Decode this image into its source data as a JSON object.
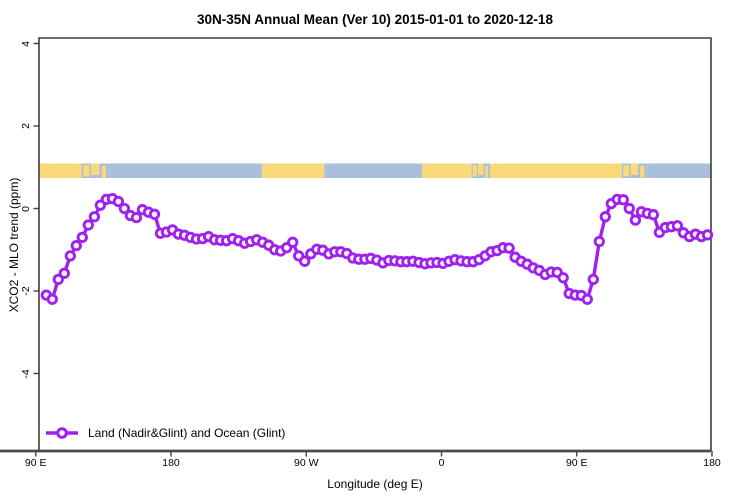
{
  "title": "30N-35N Annual Mean (Ver 10)   2015-01-01 to 2020-12-18",
  "chart_data": {
    "type": "line",
    "title": "30N-35N Annual Mean (Ver 10)   2015-01-01 to 2020-12-18",
    "xlabel": "Longitude (deg E)",
    "ylabel": "XCO2 - MLO trend (ppm)",
    "xlim": [
      90,
      540
    ],
    "ylim": [
      -5.9,
      4.15
    ],
    "grid": false,
    "legend_position": "bottom-left-inside",
    "x_ticks": [
      {
        "lon": 90,
        "label": "90 E"
      },
      {
        "lon": 180,
        "label": "180"
      },
      {
        "lon": 270,
        "label": "90 W"
      },
      {
        "lon": 360,
        "label": "0"
      },
      {
        "lon": 450,
        "label": "90 E"
      },
      {
        "lon": 540,
        "label": "180"
      }
    ],
    "y_ticks": [
      {
        "v": 4,
        "label": "4"
      },
      {
        "v": 2,
        "label": "2"
      },
      {
        "v": 0,
        "label": "0"
      },
      {
        "v": -2,
        "label": "-2"
      },
      {
        "v": -4,
        "label": "-4"
      }
    ],
    "legend": [
      {
        "label": "Land (Nadir&Glint) and Ocean (Glint)",
        "color": "#A020F0",
        "marker": "open-circle"
      }
    ],
    "map_band": {
      "center_value": 1.0,
      "ocean_color": "#A9BFDC",
      "land_color": "#FBD879",
      "segments": [
        {
          "from": 90,
          "to": 120.5,
          "type": "land"
        },
        {
          "from": 120.5,
          "to": 139,
          "type": "mixed"
        },
        {
          "from": 139,
          "to": 240.5,
          "type": "ocean"
        },
        {
          "from": 240.5,
          "to": 282,
          "type": "land"
        },
        {
          "from": 282,
          "to": 347,
          "type": "ocean"
        },
        {
          "from": 347,
          "to": 380,
          "type": "land"
        },
        {
          "from": 380,
          "to": 392.5,
          "type": "mixed"
        },
        {
          "from": 392.5,
          "to": 480,
          "type": "land"
        },
        {
          "from": 480,
          "to": 497,
          "type": "mixed"
        },
        {
          "from": 497,
          "to": 540,
          "type": "ocean"
        }
      ]
    },
    "series": [
      {
        "name": "Land (Nadir&Glint) and Ocean (Glint)",
        "color": "#A020F0",
        "marker": "open-circle",
        "lon_start": 97,
        "lon_step": 4,
        "values": [
          -2.1,
          -2.2,
          -1.72,
          -1.57,
          -1.15,
          -0.9,
          -0.7,
          -0.4,
          -0.2,
          0.08,
          0.22,
          0.24,
          0.17,
          0.0,
          -0.17,
          -0.22,
          -0.03,
          -0.09,
          -0.14,
          -0.6,
          -0.57,
          -0.52,
          -0.62,
          -0.65,
          -0.7,
          -0.74,
          -0.73,
          -0.68,
          -0.76,
          -0.77,
          -0.78,
          -0.73,
          -0.78,
          -0.84,
          -0.8,
          -0.76,
          -0.82,
          -0.89,
          -1.0,
          -1.03,
          -0.95,
          -0.82,
          -1.15,
          -1.28,
          -1.1,
          -0.99,
          -1.01,
          -1.1,
          -1.05,
          -1.05,
          -1.09,
          -1.2,
          -1.23,
          -1.23,
          -1.21,
          -1.25,
          -1.32,
          -1.26,
          -1.27,
          -1.29,
          -1.29,
          -1.28,
          -1.31,
          -1.34,
          -1.32,
          -1.31,
          -1.33,
          -1.28,
          -1.24,
          -1.27,
          -1.29,
          -1.29,
          -1.24,
          -1.15,
          -1.05,
          -1.02,
          -0.95,
          -0.96,
          -1.18,
          -1.28,
          -1.35,
          -1.44,
          -1.5,
          -1.6,
          -1.54,
          -1.55,
          -1.68,
          -2.06,
          -2.1,
          -2.11,
          -2.2,
          -1.72,
          -0.8,
          -0.2,
          0.12,
          0.22,
          0.21,
          0.0,
          -0.28,
          -0.08,
          -0.12,
          -0.15,
          -0.58,
          -0.46,
          -0.44,
          -0.42,
          -0.59,
          -0.68,
          -0.62,
          -0.68,
          -0.64
        ]
      }
    ]
  }
}
